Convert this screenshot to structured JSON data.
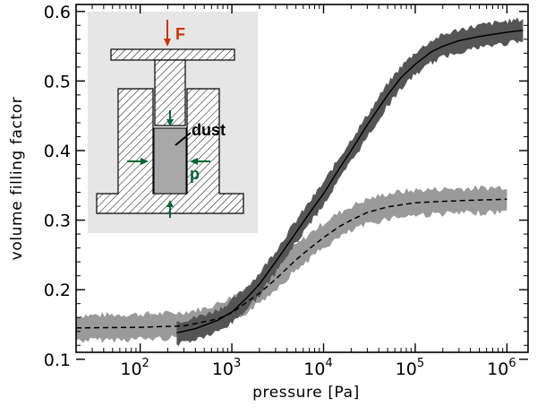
{
  "chart_data": {
    "type": "line",
    "title": "",
    "xlabel": "pressure [Pa]",
    "ylabel": "volume filling factor",
    "xscale": "log",
    "xlim": [
      20,
      1700000
    ],
    "ylim": [
      0.11,
      0.61
    ],
    "x_ticks": [
      {
        "base": "10",
        "exp": "2",
        "value": 100
      },
      {
        "base": "10",
        "exp": "3",
        "value": 1000
      },
      {
        "base": "10",
        "exp": "4",
        "value": 10000
      },
      {
        "base": "10",
        "exp": "5",
        "value": 100000
      },
      {
        "base": "10",
        "exp": "6",
        "value": 1000000
      }
    ],
    "y_ticks": [
      "0.1",
      "0.2",
      "0.3",
      "0.4",
      "0.5",
      "0.6"
    ],
    "series": [
      {
        "name": "light-gray band with dashed fit",
        "color": "#9a9a9a",
        "line_color": "#000000",
        "line_style": "dashed",
        "band_halfwidth": 0.018,
        "x": [
          20,
          50,
          100,
          200,
          300,
          500,
          700,
          1000,
          1500,
          2000,
          3000,
          5000,
          7000,
          10000,
          15000,
          20000,
          30000,
          50000,
          70000,
          100000,
          200000,
          500000,
          1000000
        ],
        "y": [
          0.145,
          0.146,
          0.147,
          0.148,
          0.15,
          0.155,
          0.162,
          0.172,
          0.187,
          0.199,
          0.219,
          0.246,
          0.262,
          0.278,
          0.293,
          0.302,
          0.312,
          0.32,
          0.323,
          0.325,
          0.327,
          0.328,
          0.33
        ],
        "fit_x": [
          20,
          100,
          300,
          700,
          1000,
          2000,
          3000,
          5000,
          7000,
          10000,
          15000,
          20000,
          30000,
          50000,
          70000,
          100000,
          200000,
          500000,
          1000000
        ],
        "fit_y": [
          0.145,
          0.146,
          0.148,
          0.158,
          0.167,
          0.195,
          0.215,
          0.243,
          0.259,
          0.275,
          0.291,
          0.3,
          0.311,
          0.319,
          0.322,
          0.325,
          0.327,
          0.329,
          0.33
        ]
      },
      {
        "name": "dark-gray band with solid fit",
        "color": "#555555",
        "line_color": "#000000",
        "line_style": "solid",
        "band_halfwidth": 0.016,
        "x": [
          250,
          400,
          700,
          1000,
          1500,
          2000,
          3000,
          5000,
          7000,
          10000,
          15000,
          20000,
          30000,
          50000,
          70000,
          100000,
          150000,
          200000,
          300000,
          500000,
          700000,
          1000000,
          1500000
        ],
        "y": [
          0.138,
          0.144,
          0.155,
          0.168,
          0.19,
          0.208,
          0.24,
          0.283,
          0.31,
          0.338,
          0.375,
          0.4,
          0.435,
          0.48,
          0.505,
          0.525,
          0.542,
          0.55,
          0.558,
          0.564,
          0.567,
          0.57,
          0.573
        ],
        "fit_x": [
          250,
          400,
          700,
          1000,
          1500,
          2000,
          3000,
          5000,
          7000,
          10000,
          15000,
          20000,
          30000,
          50000,
          70000,
          100000,
          150000,
          200000,
          300000,
          500000,
          700000,
          1000000,
          1500000
        ],
        "fit_y": [
          0.138,
          0.144,
          0.156,
          0.168,
          0.19,
          0.208,
          0.24,
          0.282,
          0.31,
          0.338,
          0.375,
          0.4,
          0.437,
          0.48,
          0.505,
          0.524,
          0.542,
          0.55,
          0.558,
          0.564,
          0.567,
          0.57,
          0.573
        ]
      }
    ],
    "inset": {
      "description": "schematic of die compression of dust sample",
      "labels": {
        "force": "F",
        "dust": "dust",
        "pressure": "p"
      },
      "colors": {
        "force_arrow": "#cc3300",
        "pressure_arrow": "#006633",
        "dust_fill": "#a8a8a8",
        "background": "#e6e6e6"
      }
    }
  }
}
